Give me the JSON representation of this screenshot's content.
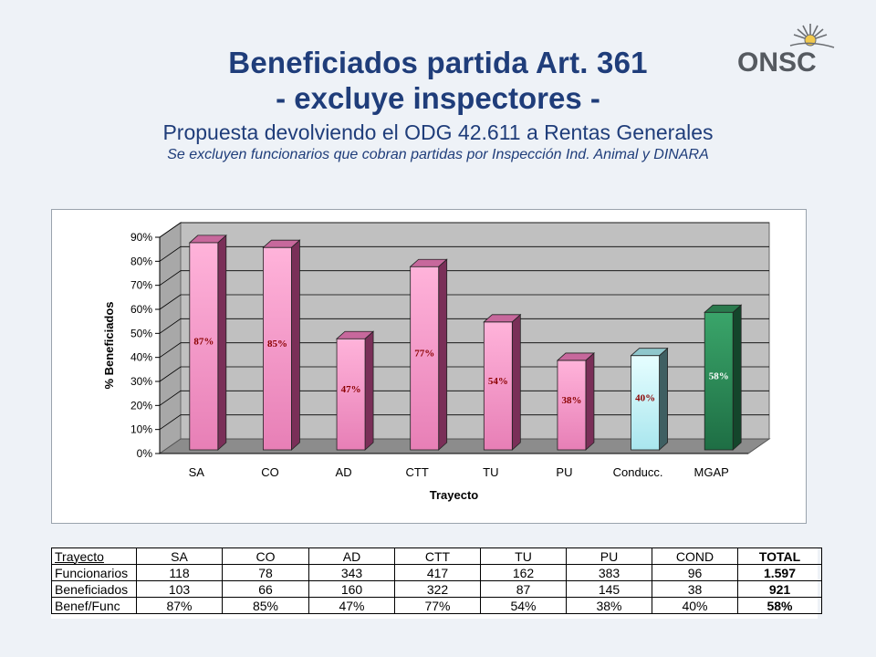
{
  "header": {
    "title_line1": "Beneficiados partida Art. 361",
    "title_line2": "- excluye inspectores -",
    "subtitle": "Propuesta devolviendo el ODG 42.611 a Rentas Generales",
    "note": "Se excluyen funcionarios que cobran partidas por Inspección Ind. Animal y DINARA"
  },
  "logo": {
    "text": "ONSC",
    "icon": "sun-emblem-icon"
  },
  "colors": {
    "title": "#1f3d7a",
    "bar_pink": "#f49ac8",
    "bar_light": "#c8f2f6",
    "bar_green": "#2e8b57",
    "wall": "#c0c0c0",
    "label_red": "#8b0000"
  },
  "chart_data": {
    "type": "bar",
    "title": "",
    "xlabel": "Trayecto",
    "ylabel": "% Beneficiados",
    "categories": [
      "SA",
      "CO",
      "AD",
      "CTT",
      "TU",
      "PU",
      "Conducc.",
      "MGAP"
    ],
    "values": [
      87,
      85,
      47,
      77,
      54,
      38,
      40,
      58
    ],
    "data_labels": [
      "87%",
      "85%",
      "47%",
      "77%",
      "54%",
      "38%",
      "40%",
      "58%"
    ],
    "bar_colors": [
      "pink",
      "pink",
      "pink",
      "pink",
      "pink",
      "pink",
      "light",
      "green"
    ],
    "y_ticks": [
      "0%",
      "10%",
      "20%",
      "30%",
      "40%",
      "50%",
      "60%",
      "70%",
      "80%",
      "90%"
    ],
    "ylim": [
      0,
      90
    ],
    "style": "3d-column",
    "grid": true,
    "legend": false
  },
  "table": {
    "columns": [
      "Trayecto",
      "SA",
      "CO",
      "AD",
      "CTT",
      "TU",
      "PU",
      "COND",
      "TOTAL"
    ],
    "rows": [
      {
        "label": "Funcionarios",
        "values": [
          "118",
          "78",
          "343",
          "417",
          "162",
          "383",
          "96"
        ],
        "total": "1.597"
      },
      {
        "label": "Beneficiados",
        "values": [
          "103",
          "66",
          "160",
          "322",
          "87",
          "145",
          "38"
        ],
        "total": "921"
      },
      {
        "label": "Benef/Func",
        "values": [
          "87%",
          "85%",
          "47%",
          "77%",
          "54%",
          "38%",
          "40%"
        ],
        "total": "58%"
      }
    ]
  }
}
